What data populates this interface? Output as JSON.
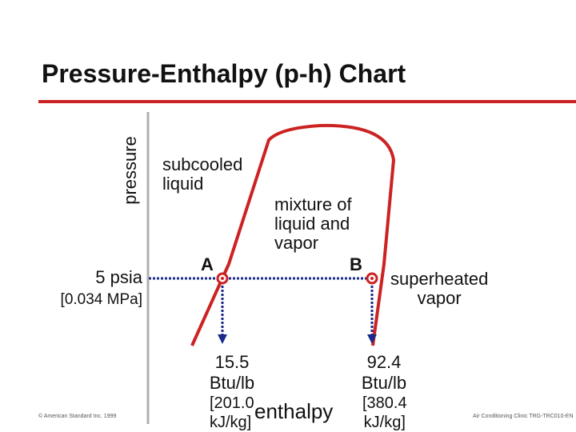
{
  "slide": {
    "title": "Pressure-Enthalpy (p-h) Chart",
    "accent_color": "#cc2222",
    "axis_color": "#b0b0b0",
    "dotted_color": "#1a2a8a"
  },
  "axes": {
    "y_label": "pressure",
    "x_label": "enthalpy"
  },
  "regions": {
    "subcooled": "subcooled\nliquid",
    "mixture": "mixture of\nliquid and\nvapor",
    "superheated": "superheated\nvapor"
  },
  "pressure_line": {
    "value": "5 psia",
    "si_value": "[0.034 MPa]"
  },
  "points": {
    "a": {
      "label": "A",
      "enthalpy": "15.5\nBtu/lb",
      "enthalpy_si": "[201.0\nkJ/kg]"
    },
    "b": {
      "label": "B",
      "enthalpy": "92.4\nBtu/lb",
      "enthalpy_si": "[380.4\nkJ/kg]"
    }
  },
  "footer": {
    "left": "© American Standard Inc. 1999",
    "right": "Air Conditioning Clinic TRG-TRC010-EN"
  }
}
